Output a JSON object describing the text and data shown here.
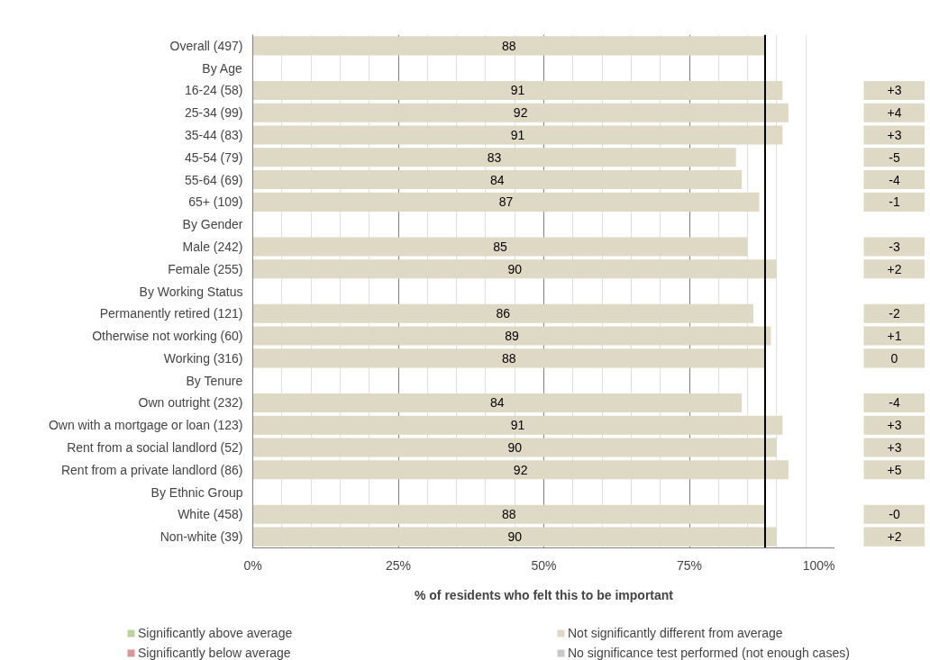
{
  "chart_data": {
    "type": "bar",
    "orientation": "horizontal",
    "xlabel": "% of residents who felt this to be important",
    "categories": [
      "Overall (497)",
      "By Age",
      "16-24 (58)",
      "25-34 (99)",
      "35-44 (83)",
      "45-54 (79)",
      "55-64 (69)",
      "65+ (109)",
      "By Gender",
      "Male (242)",
      "Female (255)",
      "By Working Status",
      "Permanently retired (121)",
      "Otherwise not working (60)",
      "Working (316)",
      "By Tenure",
      "Own outright (232)",
      "Own with a mortgage or loan (123)",
      "Rent from a social landlord (52)",
      "Rent from a private landlord (86)",
      "By Ethnic Group",
      "White (458)",
      "Non-white (39)"
    ],
    "series": [
      {
        "name": "Significantly above average",
        "color": "#b9d39a",
        "values": [
          null,
          null,
          null,
          null,
          null,
          null,
          null,
          null,
          null,
          null,
          null,
          null,
          null,
          null,
          null,
          null,
          null,
          null,
          null,
          null,
          null,
          null,
          null
        ]
      },
      {
        "name": "Significantly below average",
        "color": "#d99694",
        "values": [
          null,
          null,
          null,
          null,
          null,
          null,
          null,
          null,
          null,
          null,
          null,
          null,
          null,
          null,
          null,
          null,
          null,
          null,
          null,
          null,
          null,
          null,
          null
        ]
      },
      {
        "name": "Not significantly different from average",
        "color": "#ddd9c4",
        "values": [
          88,
          null,
          91,
          92,
          91,
          83,
          84,
          87,
          null,
          85,
          90,
          null,
          86,
          89,
          88,
          null,
          84,
          91,
          90,
          92,
          null,
          88,
          90
        ]
      },
      {
        "name": "No significance test performed (not enough cases)",
        "color": "#c8c8c8",
        "values": [
          null,
          null,
          null,
          null,
          null,
          null,
          null,
          null,
          null,
          null,
          null,
          null,
          null,
          null,
          null,
          null,
          null,
          null,
          null,
          null,
          null,
          null,
          null
        ]
      }
    ],
    "data_labels": true,
    "xlim": [
      0,
      100
    ],
    "xticks": [
      {
        "value": 0,
        "label": "0%"
      },
      {
        "value": 25,
        "label": "25%"
      },
      {
        "value": 50,
        "label": "50%"
      },
      {
        "value": 75,
        "label": "75%"
      },
      {
        "value": 100,
        "label": "100%"
      }
    ],
    "ref_lines": [
      {
        "axis": "x",
        "value": 88,
        "label": null,
        "color": "#000000"
      }
    ],
    "annotations": [
      "+3",
      "+4",
      "+3",
      "-5",
      "-4",
      "-1",
      "-3",
      "+2",
      "-2",
      "+1",
      "0",
      "-4",
      "+3",
      "+3",
      "+5",
      "-0",
      "+2"
    ],
    "grid": "x",
    "legend": "bottom"
  }
}
